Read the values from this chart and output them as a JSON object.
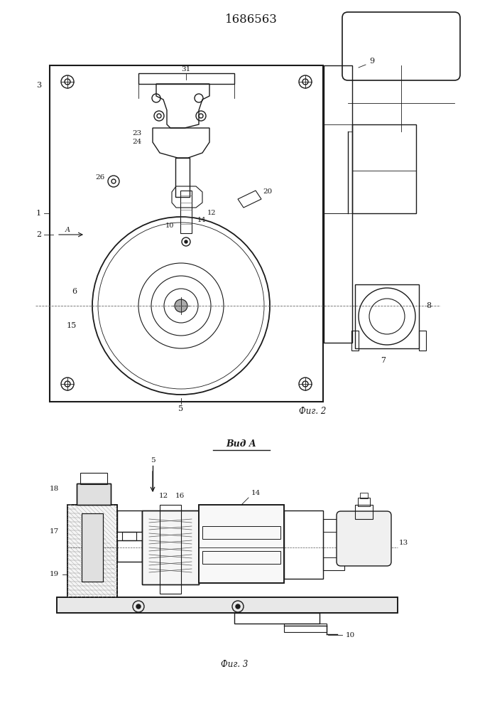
{
  "title": "1686563",
  "title_fontsize": 12,
  "fig1_caption": "Фиг. 2",
  "fig2_caption": "Фиг. 3",
  "fig2_title": "Вид A",
  "background_color": "#ffffff",
  "line_color": "#1a1a1a",
  "label_fontsize": 8.0
}
